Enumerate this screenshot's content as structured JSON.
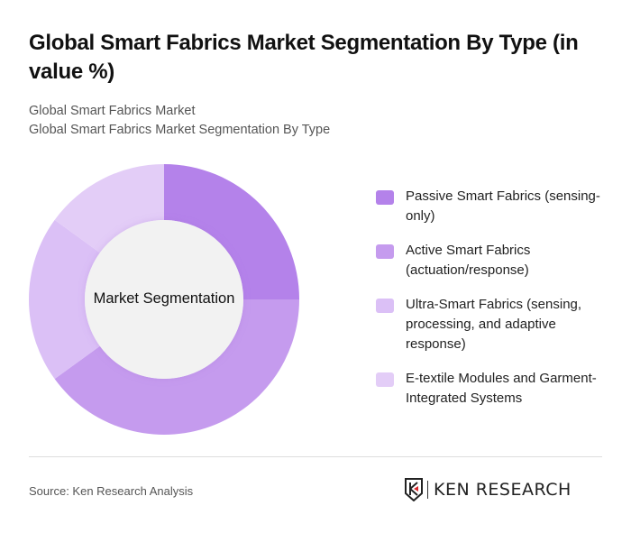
{
  "header": {
    "title": "Global Smart Fabrics Market Segmentation By Type (in value %)",
    "subtitle_line1": "Global Smart Fabrics Market",
    "subtitle_line2": "Global Smart Fabrics Market Segmentation By Type"
  },
  "chart_data": {
    "type": "pie",
    "variant": "donut",
    "title": "Global Smart Fabrics Market Segmentation By Type (in value %)",
    "center_label": "Market Segmentation",
    "categories": [
      "Passive Smart Fabrics (sensing-only)",
      "Active Smart Fabrics (actuation/response)",
      "Ultra-Smart Fabrics (sensing, processing, and adaptive response)",
      "E-textile Modules and Garment-Integrated Systems"
    ],
    "values": [
      25,
      40,
      20,
      15
    ],
    "colors": [
      "#b482ea",
      "#c59bee",
      "#dbc0f6",
      "#e3cdf7"
    ],
    "legend_position": "right"
  },
  "legend": {
    "items": [
      {
        "label": "Passive Smart Fabrics (sensing-only)",
        "color": "#b482ea"
      },
      {
        "label": "Active Smart Fabrics (actuation/response)",
        "color": "#c59bee"
      },
      {
        "label": "Ultra-Smart Fabrics (sensing, processing, and adaptive response)",
        "color": "#dbc0f6"
      },
      {
        "label": "E-textile Modules and Garment-Integrated Systems",
        "color": "#e3cdf7"
      }
    ]
  },
  "footer": {
    "source": "Source: Ken Research Analysis",
    "logo_text": "KEN RESEARCH"
  }
}
